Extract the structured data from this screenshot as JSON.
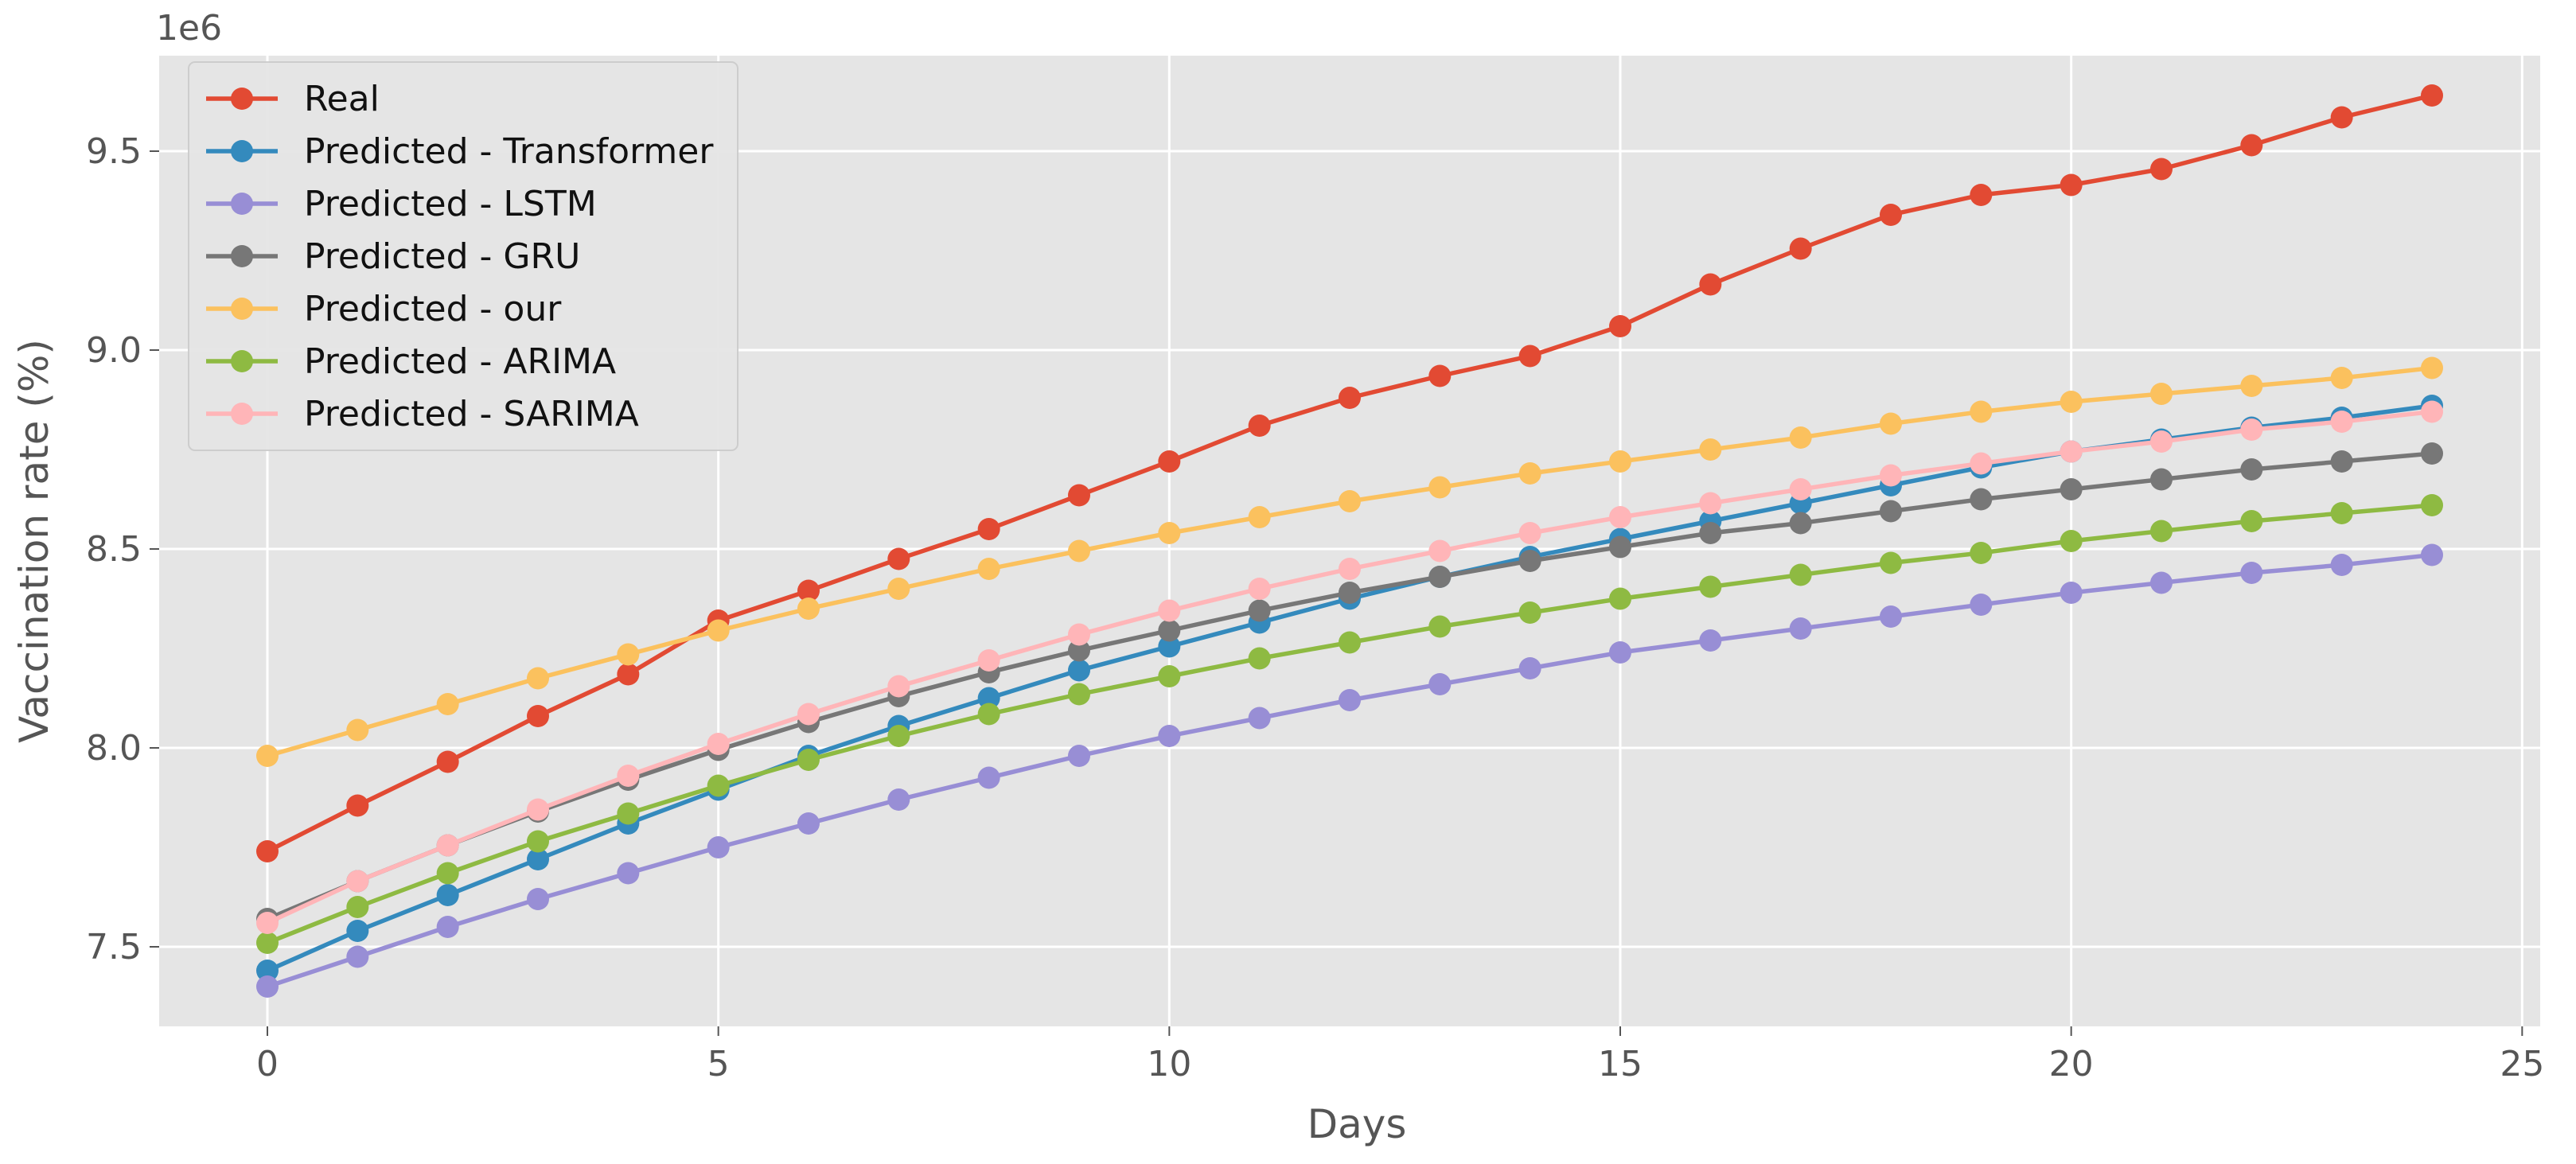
{
  "chart_data": {
    "type": "line",
    "title": "",
    "xlabel": "Days",
    "ylabel": "Vaccination rate (%)",
    "y_offset_text": "1e6",
    "y_scale": 1000000,
    "xlim": [
      -1.2,
      25.2
    ],
    "ylim": [
      7300000,
      9740000
    ],
    "xticks": [
      0,
      5,
      10,
      15,
      20,
      25
    ],
    "xtick_labels": [
      "0",
      "5",
      "10",
      "15",
      "20",
      "25"
    ],
    "yticks": [
      7500000,
      8000000,
      8500000,
      9000000,
      9500000
    ],
    "ytick_labels": [
      "7.5",
      "8.0",
      "8.5",
      "9.0",
      "9.5"
    ],
    "grid": true,
    "legend_position": "top-left",
    "background": "#e5e5e5",
    "x": [
      0,
      1,
      2,
      3,
      4,
      5,
      6,
      7,
      8,
      9,
      10,
      11,
      12,
      13,
      14,
      15,
      16,
      17,
      18,
      19,
      20,
      21,
      22,
      23,
      24
    ],
    "series": [
      {
        "name": "Real",
        "color": "#e24a33",
        "values": [
          7740000,
          7855000,
          7965000,
          8080000,
          8185000,
          8320000,
          8395000,
          8475000,
          8550000,
          8635000,
          8720000,
          8810000,
          8880000,
          8935000,
          8985000,
          9060000,
          9165000,
          9255000,
          9340000,
          9390000,
          9415000,
          9455000,
          9515000,
          9585000,
          9640000
        ]
      },
      {
        "name": "Predicted - Transformer",
        "color": "#348abd",
        "values": [
          7440000,
          7540000,
          7630000,
          7720000,
          7810000,
          7895000,
          7980000,
          8055000,
          8125000,
          8195000,
          8255000,
          8315000,
          8375000,
          8430000,
          8480000,
          8525000,
          8570000,
          8615000,
          8660000,
          8705000,
          8745000,
          8775000,
          8805000,
          8830000,
          8860000
        ]
      },
      {
        "name": "Predicted - LSTM",
        "color": "#988ed5",
        "values": [
          7400000,
          7475000,
          7550000,
          7620000,
          7685000,
          7750000,
          7810000,
          7870000,
          7925000,
          7980000,
          8030000,
          8075000,
          8120000,
          8160000,
          8200000,
          8240000,
          8270000,
          8300000,
          8330000,
          8360000,
          8390000,
          8415000,
          8440000,
          8460000,
          8485000
        ]
      },
      {
        "name": "Predicted - GRU",
        "color": "#777777",
        "values": [
          7570000,
          7665000,
          7755000,
          7840000,
          7920000,
          7995000,
          8065000,
          8130000,
          8190000,
          8245000,
          8295000,
          8345000,
          8390000,
          8430000,
          8470000,
          8505000,
          8540000,
          8565000,
          8595000,
          8625000,
          8650000,
          8675000,
          8700000,
          8720000,
          8740000
        ]
      },
      {
        "name": "Predicted - our",
        "color": "#fbc15e",
        "values": [
          7980000,
          8045000,
          8110000,
          8175000,
          8235000,
          8295000,
          8350000,
          8400000,
          8450000,
          8495000,
          8540000,
          8580000,
          8620000,
          8655000,
          8690000,
          8720000,
          8750000,
          8780000,
          8815000,
          8845000,
          8870000,
          8890000,
          8910000,
          8930000,
          8955000
        ]
      },
      {
        "name": "Predicted - ARIMA",
        "color": "#8eba42",
        "values": [
          7510000,
          7600000,
          7685000,
          7765000,
          7835000,
          7905000,
          7970000,
          8030000,
          8085000,
          8135000,
          8180000,
          8225000,
          8265000,
          8305000,
          8340000,
          8375000,
          8405000,
          8435000,
          8465000,
          8490000,
          8520000,
          8545000,
          8570000,
          8590000,
          8610000
        ]
      },
      {
        "name": "Predicted - SARIMA",
        "color": "#ffb5b8",
        "values": [
          7560000,
          7665000,
          7755000,
          7845000,
          7930000,
          8010000,
          8085000,
          8155000,
          8220000,
          8285000,
          8345000,
          8400000,
          8450000,
          8495000,
          8540000,
          8580000,
          8615000,
          8650000,
          8685000,
          8715000,
          8745000,
          8770000,
          8800000,
          8820000,
          8845000
        ]
      }
    ]
  }
}
